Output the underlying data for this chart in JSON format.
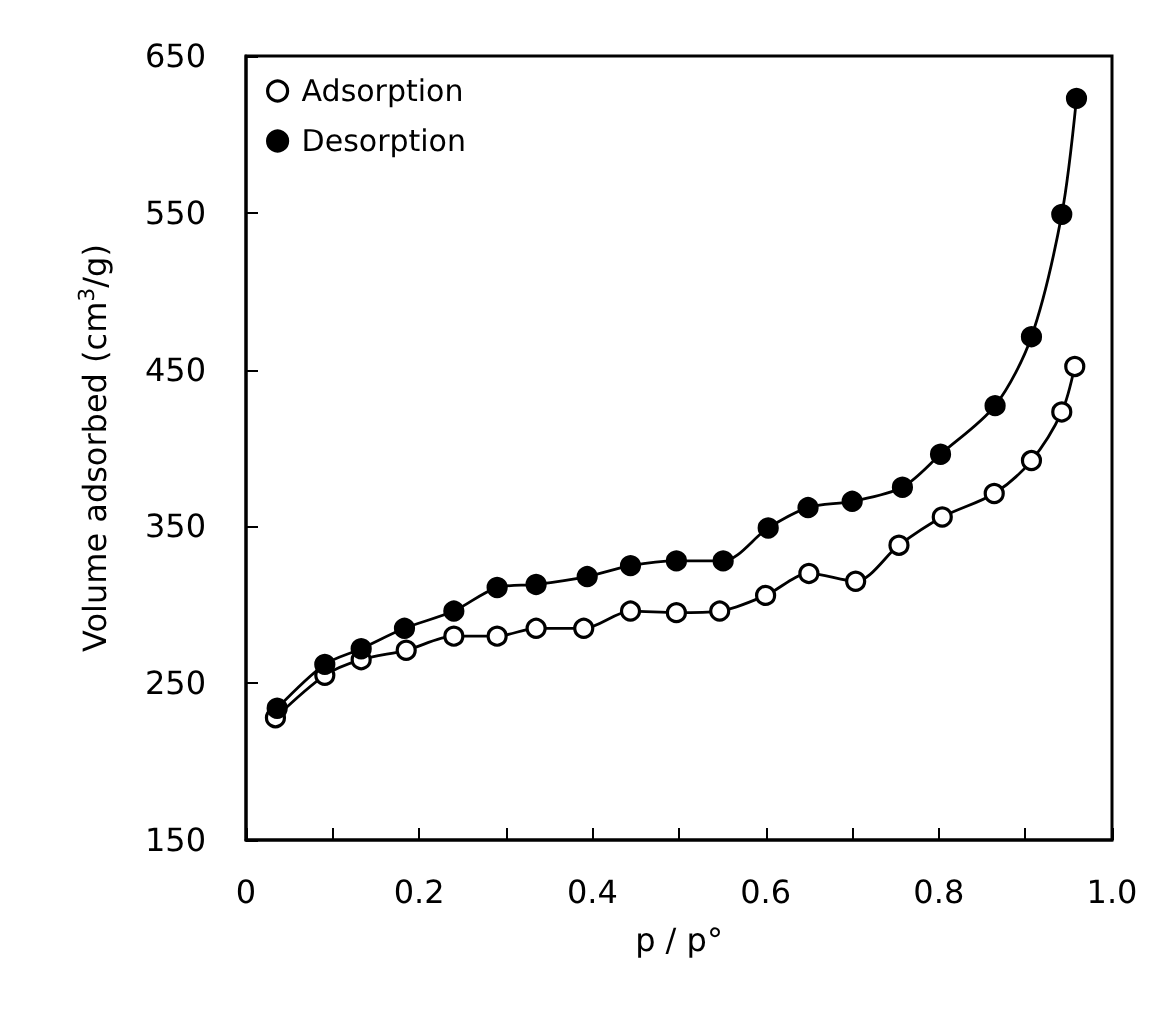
{
  "chart_data": {
    "type": "line",
    "xlabel": "p / p°",
    "ylabel": "Volume adsorbed (cm$^{3}$/g)",
    "xlim": [
      0,
      1
    ],
    "xticks": [
      0,
      {
        "value": 0.1,
        "label": null
      },
      0.2,
      {
        "value": 0.3,
        "label": null
      },
      {
        "value": 0.4,
        "label": "0.4"
      },
      {
        "value": 0.5,
        "label": null
      },
      {
        "value": 0.6,
        "label": "0.6"
      },
      {
        "value": 0.7,
        "label": null
      },
      {
        "value": 0.8,
        "label": "0.8"
      },
      {
        "value": 0.9,
        "label": null
      },
      {
        "value": 1,
        "label": "1.0"
      }
    ],
    "ylim": [
      150,
      650
    ],
    "yticks": [
      150,
      250,
      350,
      450,
      550,
      650
    ],
    "grid": false,
    "legend": "top left",
    "line_style": "solid",
    "series": [
      {
        "name": "Adsorption",
        "color": "#000000",
        "marker": "circle",
        "x": [
          0.034,
          0.091,
          0.133,
          0.185,
          0.24,
          0.29,
          0.335,
          0.39,
          0.444,
          0.497,
          0.547,
          0.6,
          0.65,
          0.704,
          0.754,
          0.804,
          0.864,
          0.907,
          0.942,
          0.957
        ],
        "values": [
          228,
          255,
          265,
          271,
          280,
          280,
          285,
          285,
          296,
          295,
          296,
          306,
          320,
          315,
          338,
          356,
          371,
          392,
          423,
          452
        ]
      },
      {
        "name": "Desorption",
        "color": "#000000",
        "marker": "circle",
        "x": [
          0.036,
          0.091,
          0.133,
          0.183,
          0.24,
          0.29,
          0.335,
          0.394,
          0.444,
          0.497,
          0.551,
          0.603,
          0.649,
          0.7,
          0.758,
          0.802,
          0.865,
          0.907,
          0.942,
          0.959
        ],
        "values": [
          234,
          262,
          272,
          285,
          296,
          311,
          313,
          318,
          325,
          328,
          328,
          349,
          362,
          366,
          375,
          396,
          427,
          471,
          549,
          623
        ]
      }
    ]
  }
}
